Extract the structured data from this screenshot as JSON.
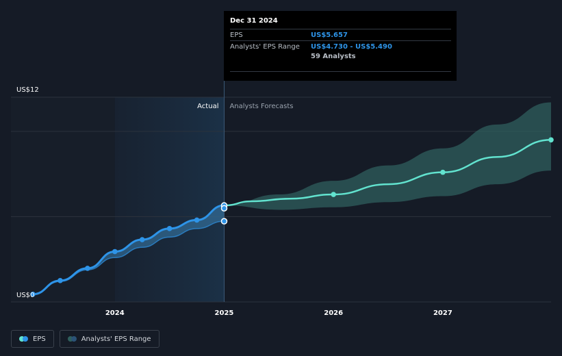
{
  "chart_data": {
    "type": "line",
    "title": "EPS",
    "x_domain": [
      2023.25,
      2027.99
    ],
    "ylim": [
      0,
      12
    ],
    "y_axis_labels": [
      {
        "value": 12,
        "text": "US$12"
      },
      {
        "value": 0,
        "text": "US$0"
      }
    ],
    "gridlines": [
      12,
      10,
      5,
      0
    ],
    "x_ticks": [
      {
        "value": 2024,
        "text": "2024"
      },
      {
        "value": 2025,
        "text": "2025"
      },
      {
        "value": 2026,
        "text": "2026"
      },
      {
        "value": 2027,
        "text": "2027"
      }
    ],
    "divider_x": 2025,
    "region_labels": {
      "actual": "Actual",
      "forecast": "Analysts Forecasts"
    },
    "series": [
      {
        "name": "EPS",
        "kind": "actual",
        "color": "#2e94e8",
        "points": [
          [
            2023.25,
            0.45
          ],
          [
            2023.5,
            1.25
          ],
          [
            2023.75,
            1.97
          ],
          [
            2024.0,
            2.95
          ],
          [
            2024.25,
            3.65
          ],
          [
            2024.5,
            4.3
          ],
          [
            2024.75,
            4.8
          ],
          [
            2025.0,
            5.657
          ]
        ]
      },
      {
        "name": "EPS Low",
        "kind": "actual-lower",
        "color": "#2e94e8",
        "points": [
          [
            2023.25,
            0.45
          ],
          [
            2023.5,
            1.2
          ],
          [
            2023.75,
            1.88
          ],
          [
            2024.0,
            2.6
          ],
          [
            2024.25,
            3.2
          ],
          [
            2024.5,
            3.8
          ],
          [
            2024.75,
            4.3
          ],
          [
            2025.0,
            4.73
          ]
        ]
      },
      {
        "name": "EPS Forecast",
        "kind": "forecast",
        "color": "#62e3cf",
        "points": [
          [
            2025.0,
            5.657
          ],
          [
            2025.25,
            5.9
          ],
          [
            2025.6,
            6.05
          ],
          [
            2026.0,
            6.3
          ],
          [
            2026.5,
            6.9
          ],
          [
            2027.0,
            7.6
          ],
          [
            2027.5,
            8.5
          ],
          [
            2027.99,
            9.5
          ]
        ]
      }
    ],
    "actual_range": {
      "upper": [
        [
          2023.25,
          0.45
        ],
        [
          2023.5,
          1.25
        ],
        [
          2023.75,
          1.97
        ],
        [
          2024.0,
          2.95
        ],
        [
          2024.25,
          3.65
        ],
        [
          2024.5,
          4.3
        ],
        [
          2024.75,
          4.8
        ],
        [
          2025.0,
          5.657
        ]
      ],
      "lower": [
        [
          2023.25,
          0.45
        ],
        [
          2023.5,
          1.2
        ],
        [
          2023.75,
          1.88
        ],
        [
          2024.0,
          2.6
        ],
        [
          2024.25,
          3.2
        ],
        [
          2024.5,
          3.8
        ],
        [
          2024.75,
          4.3
        ],
        [
          2025.0,
          4.73
        ]
      ]
    },
    "forecast_range": {
      "upper": [
        [
          2025.0,
          5.657
        ],
        [
          2025.5,
          6.3
        ],
        [
          2026.0,
          7.1
        ],
        [
          2026.5,
          8.0
        ],
        [
          2027.0,
          9.0
        ],
        [
          2027.5,
          10.4
        ],
        [
          2027.99,
          11.7
        ]
      ],
      "lower": [
        [
          2025.0,
          5.657
        ],
        [
          2025.5,
          5.4
        ],
        [
          2026.0,
          5.55
        ],
        [
          2026.5,
          5.85
        ],
        [
          2027.0,
          6.2
        ],
        [
          2027.5,
          6.9
        ],
        [
          2027.99,
          7.7
        ]
      ]
    },
    "markers_actual": [
      [
        2023.25,
        0.45
      ],
      [
        2023.5,
        1.25
      ],
      [
        2023.75,
        1.97
      ],
      [
        2024.0,
        2.95
      ],
      [
        2024.25,
        3.65
      ],
      [
        2024.5,
        4.3
      ],
      [
        2024.75,
        4.8
      ]
    ],
    "markers_forecast": [
      [
        2026.0,
        6.3
      ],
      [
        2027.0,
        7.6
      ],
      [
        2027.99,
        9.5
      ]
    ],
    "marker_hover": [
      [
        2025.0,
        5.657
      ],
      [
        2025.0,
        5.49
      ],
      [
        2025.0,
        4.73
      ]
    ]
  },
  "colors": {
    "eps": "#2e94e8",
    "forecast": "#62e3cf",
    "range_actual": "#3b7fb0",
    "range_forecast": "#2f5f5d",
    "grid": "#2c333d",
    "actual_panel": "#1c2b3e"
  },
  "tooltip": {
    "date": "Dec 31 2024",
    "eps_label": "EPS",
    "eps_value": "US$5.657",
    "range_label": "Analysts' EPS Range",
    "range_value": "US$4.730 - US$5.490",
    "analysts": "59 Analysts"
  },
  "legend": {
    "eps_label": "EPS",
    "range_label": "Analysts' EPS Range"
  }
}
